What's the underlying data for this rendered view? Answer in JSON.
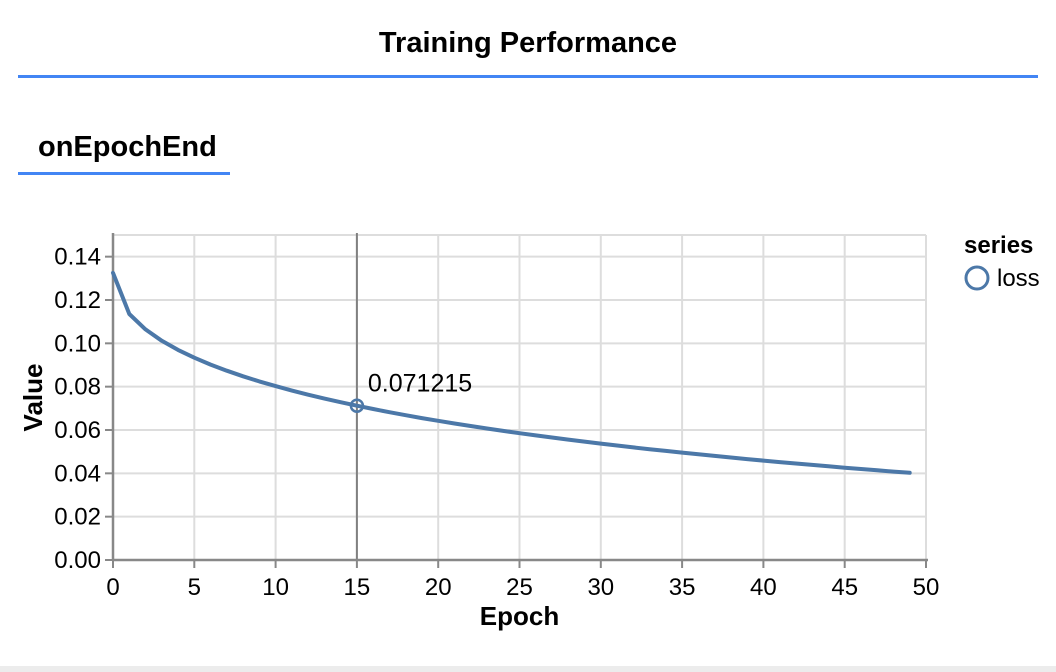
{
  "header": {
    "title": "Training Performance"
  },
  "section": {
    "heading": "onEpochEnd"
  },
  "colors": {
    "accent": "#4285f4",
    "series": "#4c78a8",
    "grid": "#dddddd",
    "axis": "#888888",
    "rule": "#808080",
    "text": "#000000",
    "bottom_strip": "#ececec"
  },
  "chart_data": {
    "type": "line",
    "title": "",
    "xlabel": "Epoch",
    "ylabel": "Value",
    "xlim": [
      0,
      50
    ],
    "ylim": [
      0,
      0.15
    ],
    "x_ticks": [
      0,
      5,
      10,
      15,
      20,
      25,
      30,
      35,
      40,
      45,
      50
    ],
    "y_ticks": [
      0,
      0.02,
      0.04,
      0.06,
      0.08,
      0.1,
      0.12,
      0.14
    ],
    "y_tick_labels": [
      "0.00",
      "0.02",
      "0.04",
      "0.06",
      "0.08",
      "0.10",
      "0.12",
      "0.14"
    ],
    "grid": true,
    "legend": {
      "title": "series",
      "position": "right",
      "entries": [
        {
          "label": "loss",
          "symbol": "circle",
          "color": "#4c78a8"
        }
      ]
    },
    "series": [
      {
        "name": "loss",
        "color": "#4c78a8",
        "x": [
          0,
          1,
          2,
          3,
          4,
          5,
          6,
          7,
          8,
          9,
          10,
          11,
          12,
          13,
          14,
          15,
          16,
          17,
          18,
          19,
          20,
          21,
          22,
          23,
          24,
          25,
          26,
          27,
          28,
          29,
          30,
          31,
          32,
          33,
          34,
          35,
          36,
          37,
          38,
          39,
          40,
          41,
          42,
          43,
          44,
          45,
          46,
          47,
          48,
          49
        ],
        "values": [
          0.1325,
          0.11355,
          0.10641,
          0.10118,
          0.09695,
          0.09335,
          0.09018,
          0.08735,
          0.08478,
          0.08242,
          0.08024,
          0.0782,
          0.0763,
          0.07451,
          0.07282,
          0.071215,
          0.06969,
          0.06823,
          0.06684,
          0.06551,
          0.06424,
          0.06301,
          0.06183,
          0.0607,
          0.0596,
          0.05854,
          0.05751,
          0.05652,
          0.05556,
          0.05463,
          0.05372,
          0.05284,
          0.05198,
          0.05115,
          0.05034,
          0.04955,
          0.04878,
          0.04803,
          0.0473,
          0.04658,
          0.04588,
          0.0452,
          0.04453,
          0.04388,
          0.04324,
          0.04261,
          0.042,
          0.0414,
          0.04081,
          0.04023
        ]
      }
    ],
    "tooltip": {
      "epoch": 15,
      "value": 0.071215,
      "label": "0.071215"
    }
  }
}
